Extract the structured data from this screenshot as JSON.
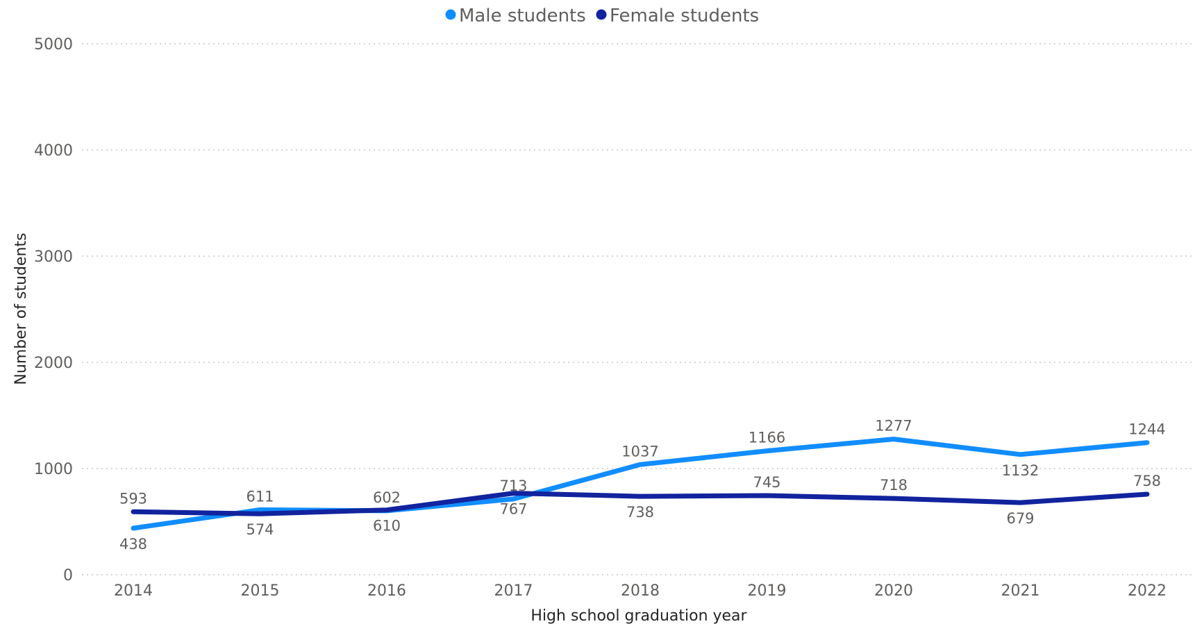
{
  "chart_data": {
    "type": "line",
    "xlabel": "High school graduation year",
    "ylabel": "Number of students",
    "categories": [
      "2014",
      "2015",
      "2016",
      "2017",
      "2018",
      "2019",
      "2020",
      "2021",
      "2022"
    ],
    "ylim": [
      0,
      5000
    ],
    "yticks": [
      "0",
      "1000",
      "2000",
      "3000",
      "4000",
      "5000"
    ],
    "grid": true,
    "legend_position": "top-center",
    "series": [
      {
        "name": "Male students",
        "color": "#118DFF",
        "values": [
          438,
          611,
          602,
          713,
          1037,
          1166,
          1277,
          1132,
          1244
        ],
        "label_positions": [
          "below",
          "above",
          "above",
          "above",
          "above",
          "above",
          "above",
          "below",
          "above"
        ]
      },
      {
        "name": "Female students",
        "color": "#12239E",
        "values": [
          593,
          574,
          610,
          767,
          738,
          745,
          718,
          679,
          758
        ],
        "label_positions": [
          "above",
          "below",
          "below",
          "below",
          "below",
          "above",
          "above",
          "below",
          "above"
        ]
      }
    ]
  }
}
